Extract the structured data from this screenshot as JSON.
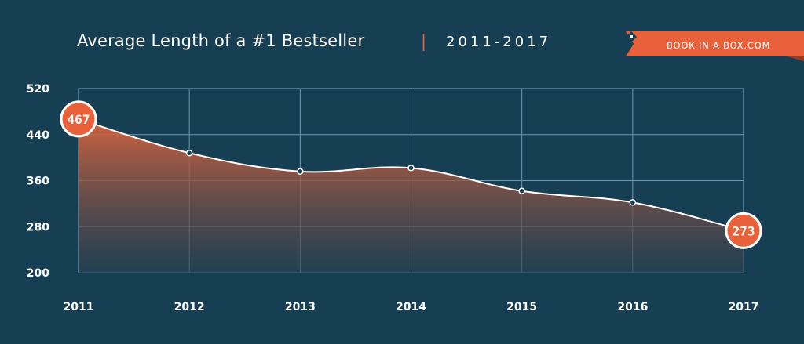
{
  "header": {
    "title": "Average Length of a #1 Bestseller",
    "separator": "|",
    "range": "2011-2017"
  },
  "brand": {
    "label": "BOOK IN A BOX.COM",
    "logo_icon": "book-in-a-box-logo-icon"
  },
  "colors": {
    "background": "#173f54",
    "accent": "#e8613a",
    "grid": "#6d9bb0",
    "line": "#ffffff"
  },
  "chart_data": {
    "type": "area",
    "x": [
      "2011",
      "2012",
      "2013",
      "2014",
      "2015",
      "2016",
      "2017"
    ],
    "values": [
      467,
      408,
      376,
      382,
      342,
      322,
      273
    ],
    "ylim": [
      200,
      520
    ],
    "yticks": [
      520,
      440,
      360,
      280,
      200
    ],
    "grid": true,
    "highlighted_labels": [
      {
        "index": 0,
        "text": "467"
      },
      {
        "index": 6,
        "text": "273"
      }
    ]
  }
}
